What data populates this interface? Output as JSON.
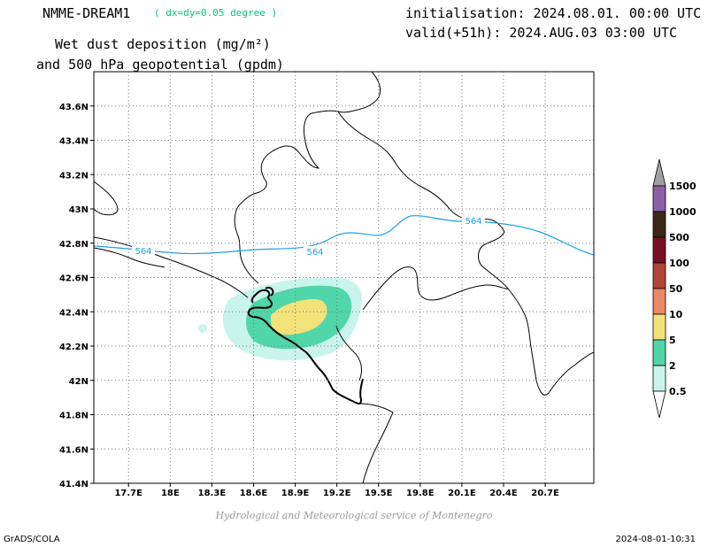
{
  "header": {
    "model_name": "NMME-DREAM1",
    "model_resolution": "( dx=dy=0.05 degree )",
    "product_line1": "Wet dust deposition (mg/m²)",
    "product_line2": "and 500 hPa geopotential (gpdm)",
    "init_time": "initialisation: 2024.08.01. 00:00 UTC",
    "valid_time": "valid(+51h): 2024.AUG.03 03:00 UTC"
  },
  "footer": {
    "credit": "Hydrological and Meteorological service of Montenegro",
    "software": "GrADS/COLA",
    "timestamp": "2024-08-01-10:31"
  },
  "map": {
    "lon_range": [
      17.45,
      21.05
    ],
    "lat_range": [
      41.4,
      43.8
    ],
    "lon_ticks": [
      "17.7E",
      "18E",
      "18.3E",
      "18.6E",
      "18.9E",
      "19.2E",
      "19.5E",
      "19.8E",
      "20.1E",
      "20.4E",
      "20.7E"
    ],
    "lat_ticks": [
      "43.6N",
      "43.4N",
      "43.2N",
      "43N",
      "42.8N",
      "42.6N",
      "42.4N",
      "42.2N",
      "42N",
      "41.8N",
      "41.6N",
      "41.4N"
    ],
    "contour_labels": [
      "564",
      "564",
      "564"
    ],
    "contour_color": "#1ea0e6"
  },
  "legend": {
    "labels": [
      "1500",
      "1000",
      "500",
      "100",
      "50",
      "10",
      "5",
      "2",
      "0.5"
    ],
    "colors": [
      "#a0a0a0",
      "#8c60a8",
      "#3c2818",
      "#7a1024",
      "#b04438",
      "#ee8866",
      "#f2e27a",
      "#50d6a8",
      "#c8f4ec",
      "#ffffff"
    ]
  }
}
